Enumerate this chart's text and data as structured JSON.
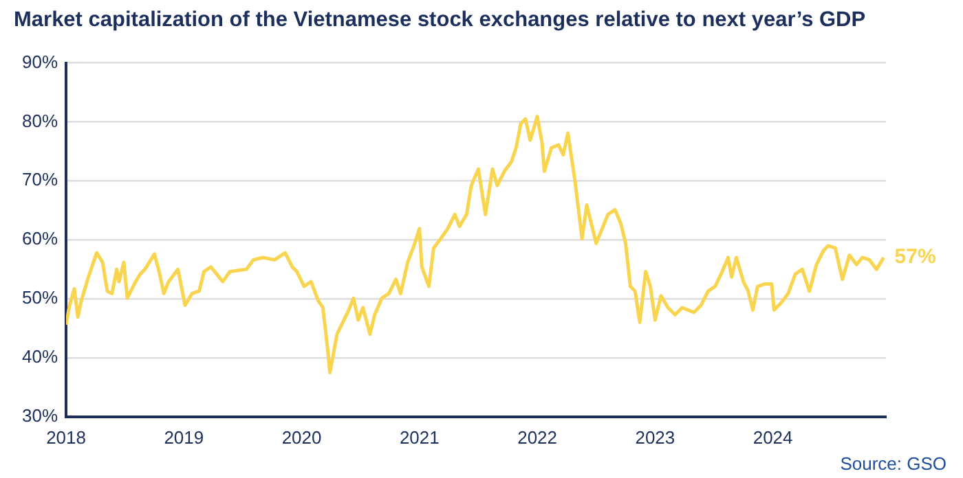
{
  "chart_data": {
    "type": "line",
    "title": "Market capitalization of the Vietnamese stock exchanges relative to next year’s GDP",
    "x": [
      2018.0,
      2018.03,
      2018.07,
      2018.1,
      2018.13,
      2018.19,
      2018.26,
      2018.31,
      2018.35,
      2018.39,
      2018.43,
      2018.45,
      2018.49,
      2018.52,
      2018.59,
      2018.63,
      2018.67,
      2018.75,
      2018.79,
      2018.83,
      2018.87,
      2018.95,
      2019.01,
      2019.07,
      2019.13,
      2019.17,
      2019.23,
      2019.33,
      2019.39,
      2019.53,
      2019.59,
      2019.67,
      2019.77,
      2019.86,
      2019.92,
      2019.96,
      2020.02,
      2020.08,
      2020.14,
      2020.18,
      2020.22,
      2020.24,
      2020.3,
      2020.4,
      2020.44,
      2020.48,
      2020.52,
      2020.58,
      2020.62,
      2020.68,
      2020.74,
      2020.8,
      2020.84,
      2020.9,
      2020.96,
      2021.0,
      2021.02,
      2021.08,
      2021.12,
      2021.18,
      2021.24,
      2021.3,
      2021.34,
      2021.4,
      2021.44,
      2021.5,
      2021.56,
      2021.62,
      2021.66,
      2021.72,
      2021.78,
      2021.82,
      2021.86,
      2021.9,
      2021.94,
      2022.0,
      2022.04,
      2022.06,
      2022.12,
      2022.18,
      2022.22,
      2022.26,
      2022.32,
      2022.38,
      2022.42,
      2022.5,
      2022.6,
      2022.66,
      2022.71,
      2022.75,
      2022.79,
      2022.83,
      2022.87,
      2022.92,
      2022.96,
      2023.0,
      2023.05,
      2023.11,
      2023.17,
      2023.23,
      2023.33,
      2023.39,
      2023.45,
      2023.51,
      2023.57,
      2023.62,
      2023.65,
      2023.69,
      2023.75,
      2023.79,
      2023.83,
      2023.87,
      2023.93,
      2023.99,
      2024.01,
      2024.07,
      2024.13,
      2024.19,
      2024.25,
      2024.31,
      2024.37,
      2024.43,
      2024.47,
      2024.53,
      2024.59,
      2024.65,
      2024.71,
      2024.76,
      2024.82,
      2024.88,
      2024.94
    ],
    "series": [
      {
        "color": "#f9d44f",
        "values": [
          45.6,
          48.9,
          51.7,
          46.9,
          49.7,
          53.7,
          57.8,
          56.2,
          51.3,
          50.9,
          55.0,
          52.9,
          56.2,
          50.1,
          52.9,
          54.2,
          55.0,
          57.6,
          54.6,
          50.9,
          52.9,
          55.0,
          48.9,
          50.9,
          51.3,
          54.6,
          55.4,
          52.9,
          54.6,
          55.0,
          56.6,
          57.0,
          56.6,
          57.8,
          55.4,
          54.6,
          52.1,
          52.9,
          49.7,
          48.5,
          41.6,
          37.5,
          44.0,
          48.1,
          50.1,
          46.4,
          48.5,
          44.0,
          47.3,
          50.1,
          50.9,
          53.3,
          50.9,
          56.2,
          59.4,
          61.9,
          55.4,
          52.1,
          58.6,
          60.2,
          61.9,
          64.3,
          62.3,
          64.3,
          69.2,
          72.0,
          64.3,
          72.0,
          69.2,
          71.6,
          73.2,
          75.6,
          79.7,
          80.5,
          76.9,
          80.9,
          76.5,
          71.6,
          75.6,
          76.1,
          74.4,
          78.1,
          70.0,
          60.2,
          65.9,
          59.4,
          64.3,
          65.1,
          62.7,
          59.4,
          52.1,
          51.3,
          46.0,
          54.6,
          52.1,
          46.4,
          50.5,
          48.5,
          47.3,
          48.5,
          47.7,
          48.9,
          51.3,
          52.1,
          54.6,
          57.0,
          53.7,
          57.0,
          52.9,
          51.3,
          48.1,
          52.1,
          52.5,
          52.5,
          48.1,
          49.3,
          50.9,
          54.2,
          55.0,
          51.3,
          55.8,
          58.2,
          59.0,
          58.6,
          53.3,
          57.4,
          55.8,
          57.0,
          56.6,
          55.0,
          57.0
        ]
      }
    ],
    "xlim": [
      2018,
      2024.96
    ],
    "xticks": [
      2018,
      2019,
      2020,
      2021,
      2022,
      2023,
      2024
    ],
    "ylim": [
      30,
      90
    ],
    "yticks": [
      {
        "value": 30,
        "label": "30%"
      },
      {
        "value": 40,
        "label": "40%"
      },
      {
        "value": 50,
        "label": "50%"
      },
      {
        "value": 60,
        "label": "60%"
      },
      {
        "value": 70,
        "label": "70%"
      },
      {
        "value": 80,
        "label": "80%"
      },
      {
        "value": 90,
        "label": "90%"
      }
    ],
    "grid": "y",
    "marker": "none",
    "line_style": "solid",
    "annotations": [
      {
        "text": "57%",
        "x": 2024.94,
        "y": 57
      },
      "Source: GSO"
    ]
  }
}
